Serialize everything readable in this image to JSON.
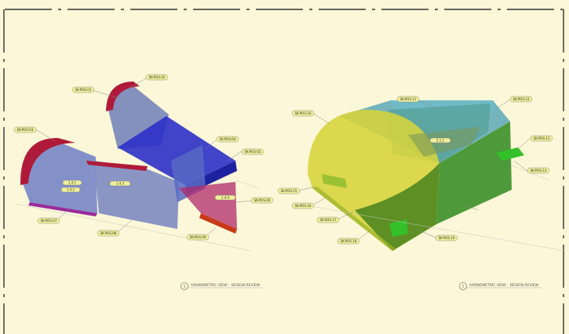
{
  "sheet": {
    "background": "#fbf7d8",
    "border_color": "#333333"
  },
  "left_view": {
    "model_colors": {
      "red": "#b01a3a",
      "blue": "#2c30c8",
      "slate": "#6f7fb8",
      "magenta": "#b22a6a"
    },
    "callouts": [
      "SK-POS-01",
      "SK-POS-02",
      "SK-POS-03",
      "SK-POS-04",
      "SK-POS-05",
      "SK-POS-06",
      "SK-POS-07",
      "SK-POS-08",
      "SK-POS-09"
    ],
    "inner_tags": [
      "1.4.1",
      "1.4.2",
      "1.4.3",
      "1.4.4"
    ],
    "caption": {
      "symbol": "1",
      "text": "AXONOMETRIC VIEW – DESIGN REVIEW"
    }
  },
  "right_view": {
    "model_colors": {
      "yellow": "#d6d43a",
      "green": "#2f8a1e",
      "teal": "#5aa8b8",
      "bright_green": "#34c028"
    },
    "callouts": [
      "SK-POS-10",
      "SK-POS-11",
      "SK-POS-12",
      "SK-POS-13",
      "SK-POS-14",
      "SK-POS-15",
      "SK-POS-16",
      "SK-POS-17",
      "SK-POS-18",
      "SK-POS-19"
    ],
    "inner_tags": [
      "2.1.1"
    ],
    "caption": {
      "symbol": "1",
      "text": "AXONOMETRIC VIEW – DESIGN REVIEW"
    }
  }
}
